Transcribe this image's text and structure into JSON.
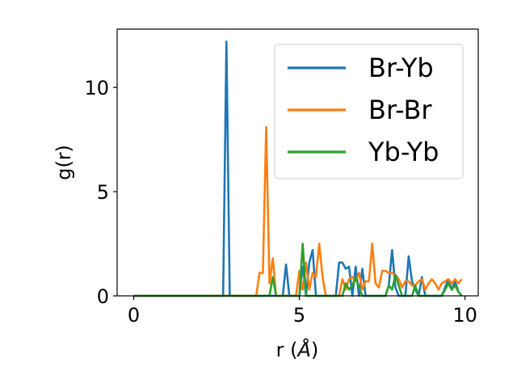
{
  "chart_data": {
    "type": "line",
    "xlabel": "r (",
    "xlabel_unit": "Å",
    "xlabel_close": ")",
    "ylabel": "g(r)",
    "xlim": [
      -0.5,
      10.4
    ],
    "ylim": [
      0,
      12.8
    ],
    "xticks": [
      0,
      5,
      10
    ],
    "yticks": [
      0,
      5,
      10
    ],
    "legend_position": "upper right",
    "grid": false,
    "series": [
      {
        "name": "Br-Yb",
        "color": "#1f77b4",
        "x": [
          0,
          2.7,
          2.8,
          2.9,
          3.0,
          4.5,
          4.6,
          4.7,
          5.0,
          5.1,
          5.2,
          5.3,
          5.4,
          5.5,
          6.1,
          6.2,
          6.3,
          6.4,
          6.5,
          6.6,
          6.7,
          6.8,
          6.9,
          7.0,
          7.1,
          7.6,
          7.7,
          7.8,
          7.9,
          8.0,
          8.2,
          8.3,
          8.4,
          8.5,
          8.6,
          8.7,
          8.8,
          9.3,
          9.4,
          9.5,
          9.6,
          9.7,
          9.8,
          9.9
        ],
        "y": [
          0,
          0,
          12.2,
          0,
          0,
          0,
          1.5,
          0,
          0,
          1.4,
          0,
          1.6,
          2.2,
          0,
          0,
          1.6,
          1.6,
          1.3,
          1.4,
          0,
          1.4,
          0,
          1.3,
          0,
          0,
          0,
          0.5,
          2.2,
          0.4,
          0,
          0,
          1.9,
          0.7,
          0.3,
          0,
          0.9,
          0,
          0,
          0.4,
          0.8,
          0.3,
          0.7,
          0.2,
          0
        ]
      },
      {
        "name": "Br-Br",
        "color": "#ff7f0e",
        "x": [
          0,
          3.7,
          3.8,
          3.9,
          4.0,
          4.1,
          4.2,
          4.3,
          4.4,
          4.9,
          5.0,
          5.1,
          5.2,
          5.3,
          5.4,
          5.5,
          5.6,
          5.7,
          5.8,
          6.2,
          6.3,
          6.4,
          6.5,
          6.6,
          6.7,
          6.8,
          6.9,
          7.0,
          7.1,
          7.2,
          7.3,
          7.4,
          7.5,
          7.6,
          7.7,
          7.8,
          7.9,
          8.0,
          8.1,
          8.2,
          8.3,
          8.4,
          8.5,
          8.6,
          8.7,
          8.8,
          8.9,
          9.0,
          9.1,
          9.2,
          9.3,
          9.4,
          9.5,
          9.6,
          9.7,
          9.8,
          9.9
        ],
        "y": [
          0,
          0,
          1.1,
          1.1,
          8.1,
          0.6,
          1.8,
          0,
          0,
          0,
          1.2,
          0.3,
          1.6,
          0.3,
          1.1,
          0.9,
          2.5,
          0.9,
          0,
          0,
          0.8,
          0.3,
          0.8,
          0.9,
          0.7,
          1.1,
          0.3,
          0.7,
          0.7,
          2.5,
          0.6,
          0.4,
          1.2,
          1.2,
          1.1,
          1.1,
          1.0,
          0.8,
          0.4,
          0.7,
          0.7,
          0.5,
          0.5,
          0.7,
          0.8,
          0.3,
          0.6,
          0.8,
          0.6,
          0.3,
          0.6,
          0.7,
          0.8,
          0.6,
          0.8,
          0.6,
          0.8
        ]
      },
      {
        "name": "Yb-Yb",
        "color": "#2ca02c",
        "x": [
          0,
          4.1,
          4.2,
          4.3,
          5.0,
          5.1,
          5.2,
          6.3,
          6.4,
          6.5,
          6.6,
          6.7,
          6.8,
          6.9,
          7.6,
          7.7,
          7.8,
          7.9,
          8.0,
          8.1,
          8.4,
          8.5,
          8.6,
          9.3,
          9.4,
          9.5,
          9.6,
          9.7,
          9.8,
          9.9
        ],
        "y": [
          0,
          0,
          0.9,
          0,
          0,
          2.5,
          0,
          0,
          0.6,
          0.3,
          0.5,
          0.9,
          0.4,
          0,
          0,
          0.5,
          0.3,
          1.0,
          0.5,
          0,
          0,
          0.5,
          0,
          0,
          0.3,
          0.6,
          0.3,
          0.5,
          0.2,
          0
        ]
      }
    ]
  }
}
